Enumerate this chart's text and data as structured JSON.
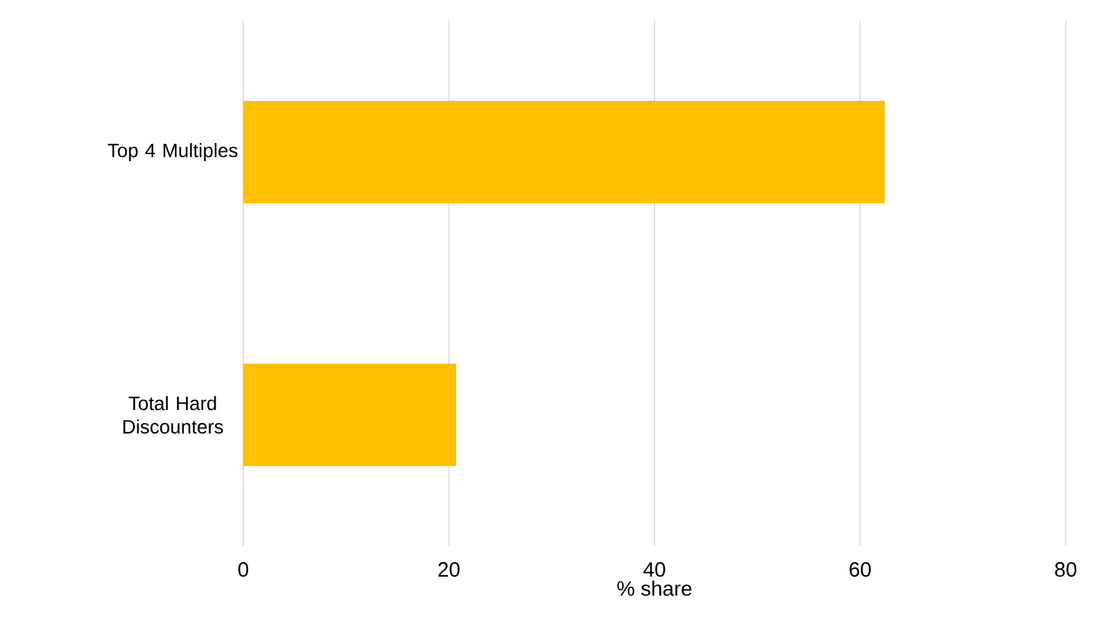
{
  "chart_data": {
    "type": "bar",
    "orientation": "horizontal",
    "xlabel": "% share",
    "categories": [
      "Top 4 Multiples",
      "Total Hard Discounters"
    ],
    "values": [
      62.4,
      20.7
    ],
    "color": "#ffc000",
    "xlim": [
      0,
      80
    ],
    "xticks": [
      0,
      20,
      40,
      60,
      80
    ],
    "grid": "x"
  }
}
